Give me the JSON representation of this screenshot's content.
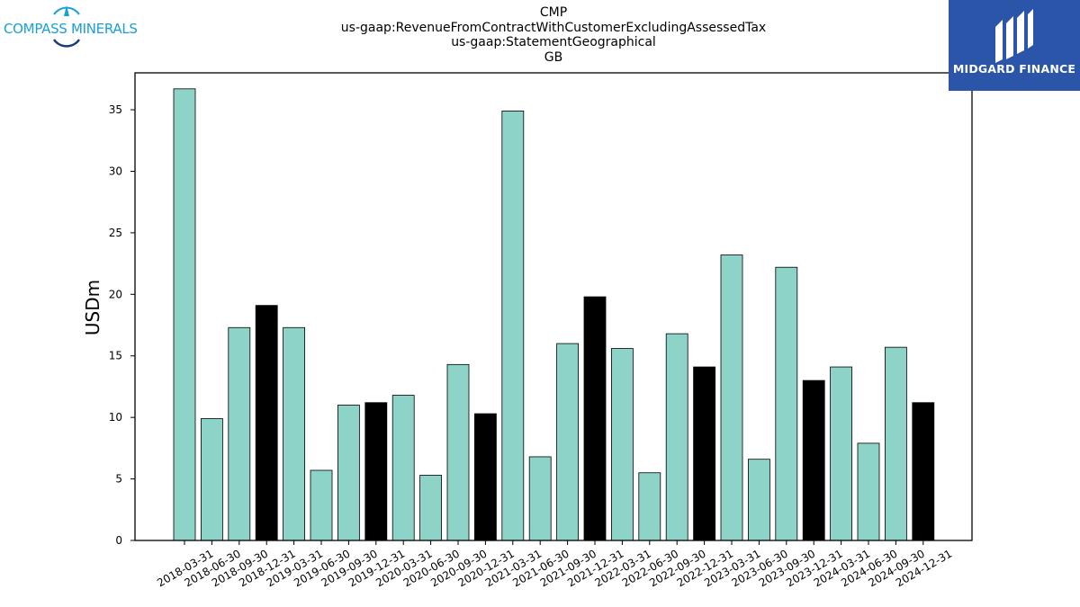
{
  "title_lines": [
    "CMP",
    "us-gaap:RevenueFromContractWithCustomerExcludingAssessedTax",
    "us-gaap:StatementGeographical",
    "GB"
  ],
  "logos": {
    "left": {
      "text": "COMPASS MINERALS",
      "color": "#1aa0d8"
    },
    "right": {
      "text": "MIDGARD FINANCE",
      "background": "#2a55a8"
    }
  },
  "chart_data": {
    "type": "bar",
    "title": "CMP us-gaap:RevenueFromContractWithCustomerExcludingAssessedTax us-gaap:StatementGeographical GB",
    "xlabel": "",
    "ylabel": "USDm",
    "ylim": [
      0,
      38
    ],
    "yticks": [
      0,
      5,
      10,
      15,
      20,
      25,
      30,
      35
    ],
    "grid": false,
    "legend": "none",
    "colors": {
      "quarter": "#8dd3c7",
      "year_end": "#000000",
      "edge": "#000000"
    },
    "categories": [
      "2018-03-31",
      "2018-06-30",
      "2018-09-30",
      "2018-12-31",
      "2019-03-31",
      "2019-06-30",
      "2019-09-30",
      "2019-12-31",
      "2020-03-31",
      "2020-06-30",
      "2020-09-30",
      "2020-12-31",
      "2021-03-31",
      "2021-06-30",
      "2021-09-30",
      "2021-12-31",
      "2022-03-31",
      "2022-06-30",
      "2022-09-30",
      "2022-12-31",
      "2023-03-31",
      "2023-06-30",
      "2023-09-30",
      "2023-12-31",
      "2024-03-31",
      "2024-06-30",
      "2024-09-30",
      "2024-12-31"
    ],
    "values": [
      36.7,
      9.9,
      17.3,
      19.1,
      17.3,
      5.7,
      11.0,
      11.2,
      11.8,
      5.3,
      14.3,
      10.3,
      34.9,
      6.8,
      16.0,
      19.8,
      15.6,
      5.5,
      16.8,
      14.1,
      23.2,
      6.6,
      22.2,
      13.0,
      14.1,
      7.9,
      15.7,
      11.2
    ]
  }
}
